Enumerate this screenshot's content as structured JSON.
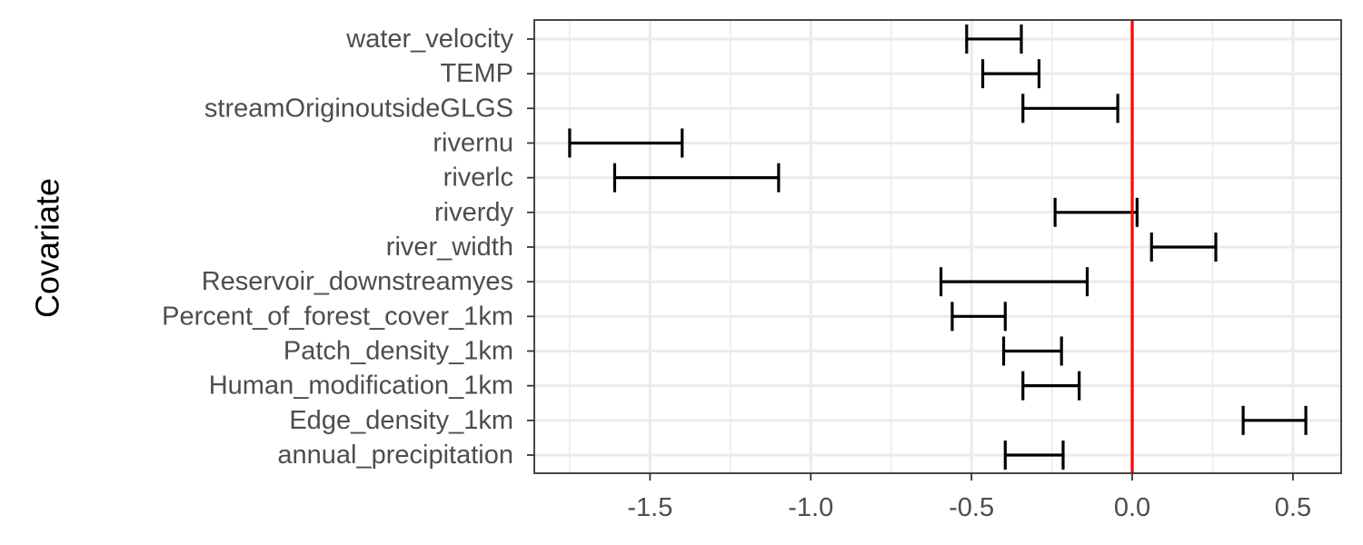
{
  "chart_data": {
    "type": "errorbar",
    "orientation": "horizontal",
    "title": "",
    "xlabel": "",
    "ylabel": "Covariate",
    "xlim": [
      -1.86,
      0.65
    ],
    "x_ticks": [
      -1.5,
      -1.0,
      -0.5,
      0.0,
      0.5
    ],
    "x_tick_labels": [
      "-1.5",
      "-1.0",
      "-0.5",
      "0.0",
      "0.5"
    ],
    "x_minor_ticks": [
      -1.75,
      -1.25,
      -0.75,
      -0.25,
      0.25
    ],
    "reference_line": {
      "x": 0.0,
      "color": "#ff0000"
    },
    "grid": true,
    "legend": "none",
    "colors": {
      "bar": "#000000",
      "grid": "#ebebeb",
      "panel_border": "#333333",
      "tick_text": "#4d4d4d",
      "reference": "#ff0000"
    },
    "categories": [
      "annual_precipitation",
      "Edge_density_1km",
      "Human_modification_1km",
      "Patch_density_1km",
      "Percent_of_forest_cover_1km",
      "Reservoir_downstreamyes",
      "river_width",
      "riverdy",
      "riverlc",
      "rivernu",
      "streamOriginoutsideGLGS",
      "TEMP",
      "water_velocity"
    ],
    "intervals": [
      {
        "category": "annual_precipitation",
        "low": -0.395,
        "high": -0.215
      },
      {
        "category": "Edge_density_1km",
        "low": 0.345,
        "high": 0.54
      },
      {
        "category": "Human_modification_1km",
        "low": -0.34,
        "high": -0.165
      },
      {
        "category": "Patch_density_1km",
        "low": -0.4,
        "high": -0.22
      },
      {
        "category": "Percent_of_forest_cover_1km",
        "low": -0.56,
        "high": -0.395
      },
      {
        "category": "Reservoir_downstreamyes",
        "low": -0.595,
        "high": -0.14
      },
      {
        "category": "river_width",
        "low": 0.06,
        "high": 0.26
      },
      {
        "category": "riverdy",
        "low": -0.24,
        "high": 0.015
      },
      {
        "category": "riverlc",
        "low": -1.61,
        "high": -1.1
      },
      {
        "category": "rivernu",
        "low": -1.75,
        "high": -1.4
      },
      {
        "category": "streamOriginoutsideGLGS",
        "low": -0.34,
        "high": -0.045
      },
      {
        "category": "TEMP",
        "low": -0.465,
        "high": -0.29
      },
      {
        "category": "water_velocity",
        "low": -0.515,
        "high": -0.345
      }
    ]
  }
}
